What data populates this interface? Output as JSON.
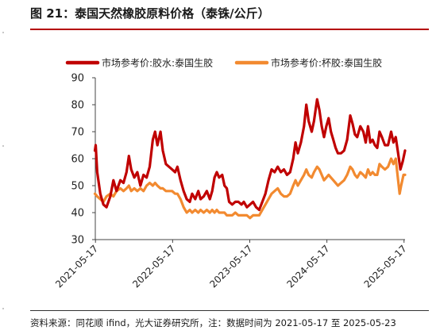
{
  "title": "图 21：泰国天然橡胶原料价格（泰铢/公斤）",
  "source": "资料来源：同花顺 ifind，光大证券研究所，注：数据时间为 2021-05-17 至 2025-05-23",
  "colors": {
    "latex": "#c00000",
    "cup": "#f28a30",
    "rule": "#b40000"
  },
  "chart_data": {
    "type": "line",
    "title": "",
    "xlabel": "",
    "ylabel": "",
    "ylim": [
      30,
      90
    ],
    "yticks": [
      "30",
      "40",
      "50",
      "60",
      "70",
      "80",
      "90"
    ],
    "xticks": [
      "2021-05-17",
      "2022-05-17",
      "2023-05-17",
      "2024-05-17",
      "2025-05-17"
    ],
    "x_range": [
      2021.375,
      2025.39
    ],
    "legend_position": "top",
    "grid": false,
    "series": [
      {
        "name": "市场参考价:胶水:泰国生胶",
        "color": "#c00000",
        "points": [
          [
            2021.37,
            63
          ],
          [
            2021.38,
            65
          ],
          [
            2021.4,
            55
          ],
          [
            2021.44,
            47
          ],
          [
            2021.48,
            43
          ],
          [
            2021.52,
            42
          ],
          [
            2021.57,
            46
          ],
          [
            2021.61,
            52
          ],
          [
            2021.65,
            48
          ],
          [
            2021.7,
            52
          ],
          [
            2021.74,
            51
          ],
          [
            2021.78,
            55
          ],
          [
            2021.81,
            61
          ],
          [
            2021.84,
            56
          ],
          [
            2021.88,
            53
          ],
          [
            2021.92,
            55
          ],
          [
            2021.96,
            50
          ],
          [
            2022.0,
            54
          ],
          [
            2022.04,
            53
          ],
          [
            2022.08,
            57
          ],
          [
            2022.12,
            67
          ],
          [
            2022.15,
            70
          ],
          [
            2022.18,
            65
          ],
          [
            2022.22,
            70
          ],
          [
            2022.25,
            63
          ],
          [
            2022.29,
            58
          ],
          [
            2022.33,
            57
          ],
          [
            2022.37,
            56
          ],
          [
            2022.41,
            55
          ],
          [
            2022.44,
            57
          ],
          [
            2022.48,
            52
          ],
          [
            2022.52,
            48
          ],
          [
            2022.56,
            45
          ],
          [
            2022.6,
            44
          ],
          [
            2022.63,
            47
          ],
          [
            2022.67,
            45
          ],
          [
            2022.71,
            48
          ],
          [
            2022.74,
            45
          ],
          [
            2022.78,
            46
          ],
          [
            2022.82,
            48
          ],
          [
            2022.86,
            45
          ],
          [
            2022.89,
            48
          ],
          [
            2022.92,
            53
          ],
          [
            2022.95,
            55
          ],
          [
            2022.98,
            53
          ],
          [
            2023.02,
            54
          ],
          [
            2023.05,
            50
          ],
          [
            2023.08,
            49
          ],
          [
            2023.11,
            44
          ],
          [
            2023.15,
            43
          ],
          [
            2023.19,
            44
          ],
          [
            2023.23,
            44
          ],
          [
            2023.27,
            43
          ],
          [
            2023.3,
            44
          ],
          [
            2023.34,
            42
          ],
          [
            2023.38,
            43
          ],
          [
            2023.42,
            44
          ],
          [
            2023.46,
            42
          ],
          [
            2023.5,
            41
          ],
          [
            2023.54,
            44
          ],
          [
            2023.58,
            47
          ],
          [
            2023.62,
            52
          ],
          [
            2023.66,
            56
          ],
          [
            2023.7,
            55
          ],
          [
            2023.74,
            57
          ],
          [
            2023.78,
            55
          ],
          [
            2023.82,
            56
          ],
          [
            2023.86,
            54
          ],
          [
            2023.9,
            55
          ],
          [
            2023.94,
            60
          ],
          [
            2023.97,
            66
          ],
          [
            2024.0,
            62
          ],
          [
            2024.04,
            66
          ],
          [
            2024.08,
            72
          ],
          [
            2024.11,
            80
          ],
          [
            2024.14,
            74
          ],
          [
            2024.18,
            70
          ],
          [
            2024.21,
            74
          ],
          [
            2024.25,
            82
          ],
          [
            2024.28,
            78
          ],
          [
            2024.31,
            72
          ],
          [
            2024.34,
            68
          ],
          [
            2024.37,
            72
          ],
          [
            2024.4,
            75
          ],
          [
            2024.43,
            70
          ],
          [
            2024.46,
            67
          ],
          [
            2024.49,
            64
          ],
          [
            2024.52,
            62
          ],
          [
            2024.56,
            62
          ],
          [
            2024.6,
            63
          ],
          [
            2024.64,
            67
          ],
          [
            2024.68,
            76
          ],
          [
            2024.71,
            73
          ],
          [
            2024.74,
            69
          ],
          [
            2024.77,
            68
          ],
          [
            2024.81,
            72
          ],
          [
            2024.85,
            70
          ],
          [
            2024.88,
            66
          ],
          [
            2024.91,
            72
          ],
          [
            2024.94,
            66
          ],
          [
            2024.97,
            67
          ],
          [
            2025.0,
            65
          ],
          [
            2025.03,
            64
          ],
          [
            2025.06,
            70
          ],
          [
            2025.09,
            68
          ],
          [
            2025.13,
            65
          ],
          [
            2025.17,
            65
          ],
          [
            2025.21,
            70
          ],
          [
            2025.24,
            66
          ],
          [
            2025.27,
            68
          ],
          [
            2025.3,
            62
          ],
          [
            2025.33,
            56
          ],
          [
            2025.36,
            59
          ],
          [
            2025.39,
            63
          ]
        ]
      },
      {
        "name": "市场参考价:杯胶:泰国生胶",
        "color": "#f28a30",
        "points": [
          [
            2021.37,
            47
          ],
          [
            2021.4,
            46
          ],
          [
            2021.44,
            45
          ],
          [
            2021.48,
            44
          ],
          [
            2021.52,
            46
          ],
          [
            2021.57,
            47
          ],
          [
            2021.61,
            46
          ],
          [
            2021.65,
            48
          ],
          [
            2021.7,
            49
          ],
          [
            2021.74,
            48
          ],
          [
            2021.78,
            49
          ],
          [
            2021.81,
            50
          ],
          [
            2021.84,
            48
          ],
          [
            2021.88,
            49
          ],
          [
            2021.92,
            48
          ],
          [
            2021.96,
            49
          ],
          [
            2022.0,
            48
          ],
          [
            2022.04,
            50
          ],
          [
            2022.08,
            51
          ],
          [
            2022.12,
            50
          ],
          [
            2022.15,
            51
          ],
          [
            2022.18,
            50
          ],
          [
            2022.22,
            49
          ],
          [
            2022.25,
            49
          ],
          [
            2022.29,
            48
          ],
          [
            2022.33,
            48
          ],
          [
            2022.37,
            48
          ],
          [
            2022.41,
            47
          ],
          [
            2022.44,
            47
          ],
          [
            2022.48,
            45
          ],
          [
            2022.52,
            42
          ],
          [
            2022.56,
            40
          ],
          [
            2022.6,
            41
          ],
          [
            2022.63,
            40
          ],
          [
            2022.67,
            41
          ],
          [
            2022.71,
            40
          ],
          [
            2022.74,
            41
          ],
          [
            2022.78,
            40
          ],
          [
            2022.82,
            41
          ],
          [
            2022.86,
            40
          ],
          [
            2022.89,
            41
          ],
          [
            2022.92,
            40
          ],
          [
            2022.95,
            41
          ],
          [
            2022.98,
            40
          ],
          [
            2023.02,
            40
          ],
          [
            2023.05,
            40
          ],
          [
            2023.08,
            39
          ],
          [
            2023.11,
            39
          ],
          [
            2023.15,
            39
          ],
          [
            2023.19,
            40
          ],
          [
            2023.23,
            39
          ],
          [
            2023.27,
            39
          ],
          [
            2023.3,
            39
          ],
          [
            2023.34,
            39
          ],
          [
            2023.38,
            38
          ],
          [
            2023.42,
            39
          ],
          [
            2023.46,
            39
          ],
          [
            2023.5,
            39
          ],
          [
            2023.54,
            41
          ],
          [
            2023.58,
            43
          ],
          [
            2023.62,
            45
          ],
          [
            2023.66,
            47
          ],
          [
            2023.7,
            48
          ],
          [
            2023.74,
            49
          ],
          [
            2023.78,
            47
          ],
          [
            2023.82,
            46
          ],
          [
            2023.86,
            46
          ],
          [
            2023.9,
            47
          ],
          [
            2023.94,
            50
          ],
          [
            2023.97,
            52
          ],
          [
            2024.0,
            50
          ],
          [
            2024.04,
            52
          ],
          [
            2024.08,
            54
          ],
          [
            2024.11,
            56
          ],
          [
            2024.14,
            54
          ],
          [
            2024.18,
            53
          ],
          [
            2024.21,
            55
          ],
          [
            2024.25,
            57
          ],
          [
            2024.28,
            56
          ],
          [
            2024.31,
            54
          ],
          [
            2024.34,
            52
          ],
          [
            2024.37,
            53
          ],
          [
            2024.4,
            54
          ],
          [
            2024.43,
            53
          ],
          [
            2024.46,
            52
          ],
          [
            2024.49,
            51
          ],
          [
            2024.52,
            50
          ],
          [
            2024.56,
            51
          ],
          [
            2024.6,
            52
          ],
          [
            2024.64,
            54
          ],
          [
            2024.68,
            57
          ],
          [
            2024.71,
            56
          ],
          [
            2024.74,
            54
          ],
          [
            2024.77,
            53
          ],
          [
            2024.81,
            55
          ],
          [
            2024.85,
            54
          ],
          [
            2024.88,
            53
          ],
          [
            2024.91,
            56
          ],
          [
            2024.94,
            54
          ],
          [
            2024.97,
            55
          ],
          [
            2025.0,
            54
          ],
          [
            2025.03,
            54
          ],
          [
            2025.06,
            58
          ],
          [
            2025.09,
            57
          ],
          [
            2025.13,
            56
          ],
          [
            2025.17,
            57
          ],
          [
            2025.21,
            60
          ],
          [
            2025.24,
            58
          ],
          [
            2025.27,
            60
          ],
          [
            2025.3,
            52
          ],
          [
            2025.32,
            47
          ],
          [
            2025.34,
            50
          ],
          [
            2025.37,
            54
          ],
          [
            2025.39,
            54
          ]
        ]
      }
    ]
  }
}
